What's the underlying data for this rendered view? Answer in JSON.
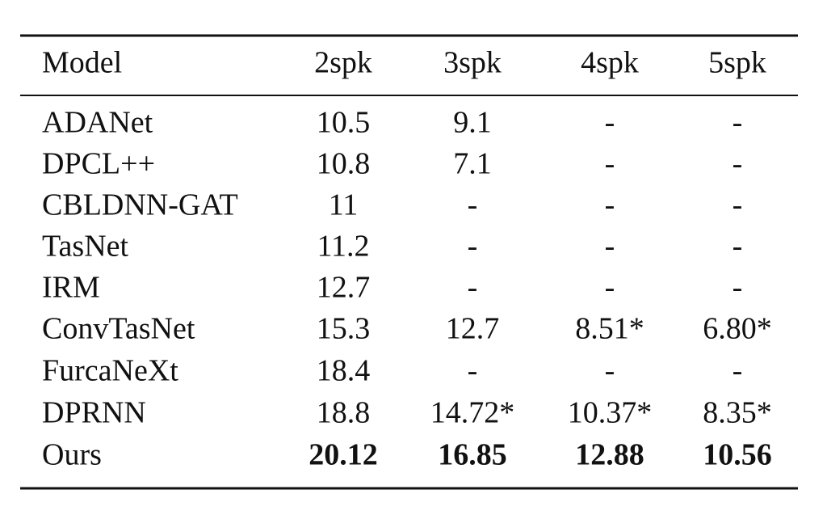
{
  "table": {
    "header": [
      "Model",
      "2spk",
      "3spk",
      "4spk",
      "5spk"
    ],
    "rows": [
      [
        "ADANet",
        "10.5",
        "9.1",
        "-",
        "-"
      ],
      [
        "DPCL++",
        "10.8",
        "7.1",
        "-",
        "-"
      ],
      [
        "CBLDNN-GAT",
        "11",
        "-",
        "-",
        "-"
      ],
      [
        "TasNet",
        "11.2",
        "-",
        "-",
        "-"
      ],
      [
        "IRM",
        "12.7",
        "-",
        "-",
        "-"
      ],
      [
        "ConvTasNet",
        "15.3",
        "12.7",
        "8.51*",
        "6.80*"
      ],
      [
        "FurcaNeXt",
        "18.4",
        "-",
        "-",
        "-"
      ],
      [
        "DPRNN",
        "18.8",
        "14.72*",
        "10.37*",
        "8.35*"
      ],
      [
        "Ours",
        "20.12",
        "16.85",
        "12.88",
        "10.56"
      ]
    ]
  }
}
